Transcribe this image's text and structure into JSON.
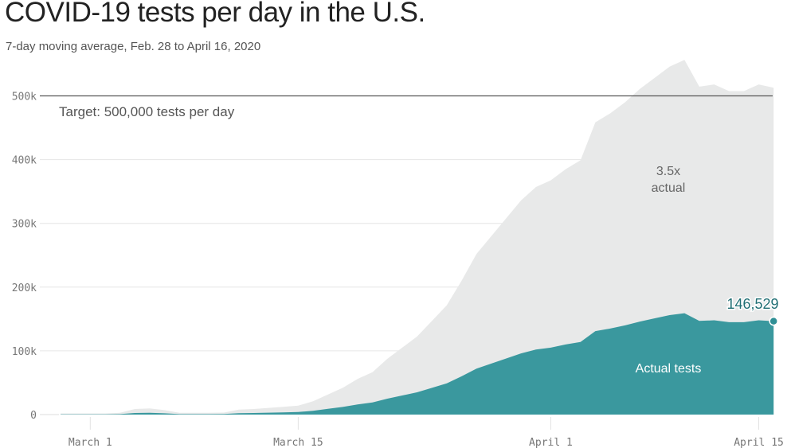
{
  "title": "COVID-19 tests per day in the U.S.",
  "subtitle": "7-day moving average, Feb. 28 to April 16, 2020",
  "chart_data": {
    "type": "area",
    "title": "COVID-19 tests per day in the U.S.",
    "start_date": "2020-02-28",
    "end_date": "2020-04-16",
    "ylim": [
      0,
      500000
    ],
    "yticks": [
      0,
      100000,
      200000,
      300000,
      400000,
      500000
    ],
    "ytick_labels": [
      "0",
      "100k",
      "200k",
      "300k",
      "400k",
      "500k"
    ],
    "xticks": [
      {
        "day": 2,
        "label": "March 1"
      },
      {
        "day": 16,
        "label": "March 15"
      },
      {
        "day": 33,
        "label": "April 1"
      },
      {
        "day": 47,
        "label": "April 15"
      }
    ],
    "series": [
      {
        "name": "Actual tests",
        "color": "#3a989e",
        "values": [
          500,
          500,
          500,
          500,
          800,
          2500,
          2800,
          2000,
          800,
          800,
          800,
          900,
          2200,
          2500,
          3000,
          3500,
          4000,
          6000,
          9000,
          12000,
          16000,
          19000,
          25000,
          30000,
          35000,
          42000,
          49000,
          60000,
          72000,
          80000,
          88000,
          96000,
          102000,
          105000,
          110000,
          114000,
          131000,
          135000,
          140000,
          146000,
          151000,
          156000,
          159000,
          147000,
          148000,
          145000,
          145000,
          148000,
          146529
        ]
      },
      {
        "name": "3.5x actual",
        "color": "#e8e9e9",
        "multiplier": 3.5
      }
    ],
    "reference_line": {
      "value": 500000,
      "label": "Target: 500,000 tests per day"
    },
    "annotations": {
      "gray_label_1": "3.5x",
      "gray_label_2": "actual",
      "actual_label": "Actual tests",
      "last_value_label": "146,529"
    }
  }
}
